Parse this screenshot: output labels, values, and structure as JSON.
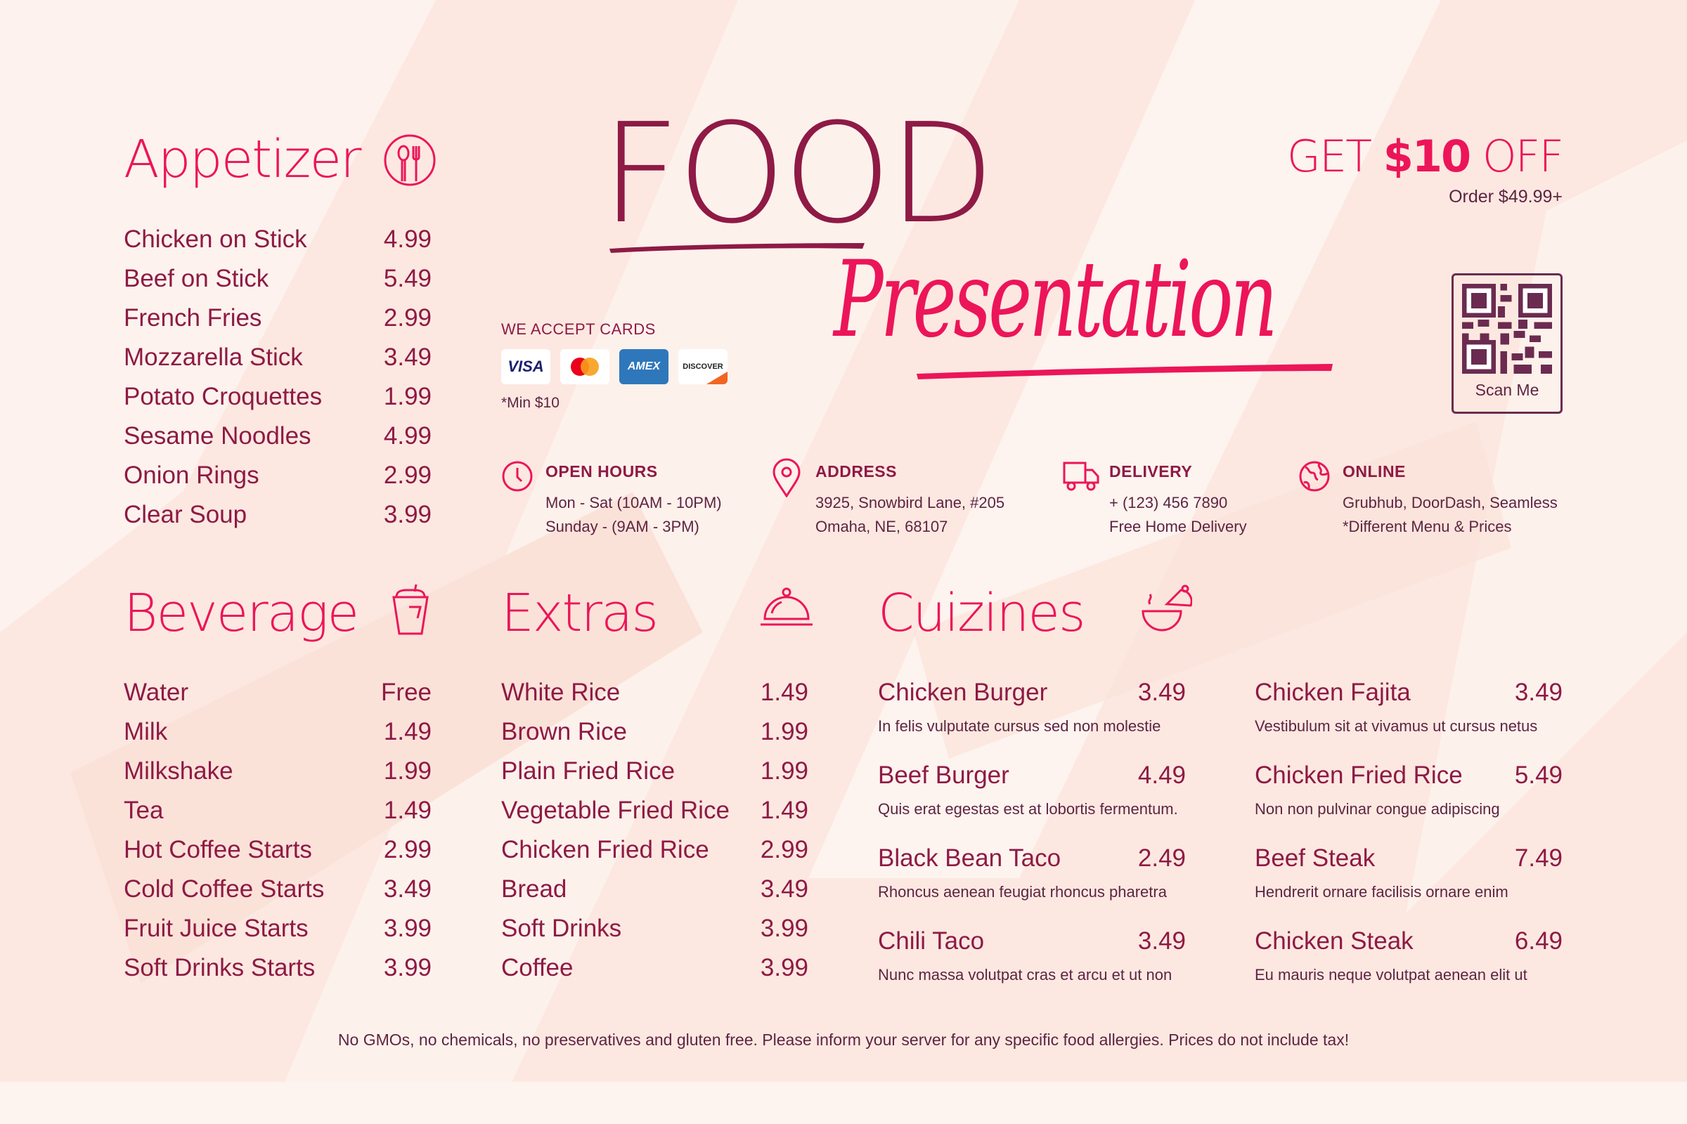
{
  "colors": {
    "accent": "#ec1559",
    "maroon": "#8e1a45",
    "text": "#5e2443",
    "background": "#fce8e1"
  },
  "title": {
    "food": "FOOD",
    "presentation": "Presentation"
  },
  "promo": {
    "get": "GET",
    "amount": "$10",
    "off": "OFF",
    "order": "Order $49.99+"
  },
  "qr": {
    "label": "Scan Me"
  },
  "cards": {
    "title": "WE ACCEPT CARDS",
    "visa": "VISA",
    "amex": "AMEX",
    "discover": "DISCOVER",
    "min": "*Min $10"
  },
  "info": [
    {
      "icon": "clock-icon",
      "title": "OPEN HOURS",
      "lines": [
        "Mon - Sat (10AM - 10PM)",
        "Sunday - (9AM - 3PM)"
      ]
    },
    {
      "icon": "location-pin-icon",
      "title": "ADDRESS",
      "lines": [
        "3925, Snowbird Lane, #205",
        "Omaha, NE, 68107"
      ]
    },
    {
      "icon": "truck-icon",
      "title": "DELIVERY",
      "lines": [
        "+ (123) 456 7890",
        "Free Home Delivery"
      ]
    },
    {
      "icon": "globe-icon",
      "title": "ONLINE",
      "lines": [
        "Grubhub, DoorDash, Seamless",
        "*Different Menu & Prices"
      ]
    }
  ],
  "appetizer": {
    "title": "Appetizer",
    "icon": "fork-spoon-icon",
    "items": [
      {
        "name": "Chicken on Stick",
        "price": "4.99"
      },
      {
        "name": "Beef on Stick",
        "price": "5.49"
      },
      {
        "name": "French Fries",
        "price": "2.99"
      },
      {
        "name": "Mozzarella Stick",
        "price": "3.49"
      },
      {
        "name": "Potato Croquettes",
        "price": "1.99"
      },
      {
        "name": "Sesame Noodles",
        "price": "4.99"
      },
      {
        "name": "Onion Rings",
        "price": "2.99"
      },
      {
        "name": "Clear Soup",
        "price": "3.99"
      }
    ]
  },
  "beverage": {
    "title": "Beverage",
    "icon": "cup-icon",
    "items": [
      {
        "name": "Water",
        "price": "Free"
      },
      {
        "name": "Milk",
        "price": "1.49"
      },
      {
        "name": "Milkshake",
        "price": "1.99"
      },
      {
        "name": "Tea",
        "price": "1.49"
      },
      {
        "name": "Hot Coffee Starts",
        "price": "2.99"
      },
      {
        "name": "Cold Coffee Starts",
        "price": "3.49"
      },
      {
        "name": "Fruit Juice Starts",
        "price": "3.99"
      },
      {
        "name": "Soft Drinks Starts",
        "price": "3.99"
      }
    ]
  },
  "extras": {
    "title": "Extras",
    "icon": "cloche-icon",
    "items": [
      {
        "name": "White Rice",
        "price": "1.49"
      },
      {
        "name": "Brown Rice",
        "price": "1.99"
      },
      {
        "name": "Plain Fried Rice",
        "price": "1.99"
      },
      {
        "name": "Vegetable Fried Rice",
        "price": "1.49"
      },
      {
        "name": "Chicken Fried Rice",
        "price": "2.99"
      },
      {
        "name": "Bread",
        "price": "3.49"
      },
      {
        "name": "Soft Drinks",
        "price": "3.99"
      },
      {
        "name": "Coffee",
        "price": "3.99"
      }
    ]
  },
  "cuizines": {
    "title": "Cuizines",
    "icon": "pot-icon",
    "items": [
      {
        "name": "Chicken Burger",
        "price": "3.49",
        "desc": "In felis vulputate cursus sed non molestie"
      },
      {
        "name": "Beef Burger",
        "price": "4.49",
        "desc": "Quis erat egestas est at lobortis fermentum."
      },
      {
        "name": "Black Bean Taco",
        "price": "2.49",
        "desc": "Rhoncus aenean feugiat rhoncus pharetra"
      },
      {
        "name": "Chili Taco",
        "price": "3.49",
        "desc": "Nunc massa volutpat cras et arcu et ut non"
      },
      {
        "name": "Chicken Fajita",
        "price": "3.49",
        "desc": "Vestibulum sit at vivamus ut cursus netus"
      },
      {
        "name": "Chicken Fried Rice",
        "price": "5.49",
        "desc": "Non non pulvinar congue adipiscing"
      },
      {
        "name": "Beef Steak",
        "price": "7.49",
        "desc": "Hendrerit ornare facilisis ornare enim"
      },
      {
        "name": "Chicken Steak",
        "price": "6.49",
        "desc": "Eu mauris neque volutpat aenean elit ut"
      }
    ]
  },
  "footer": "No GMOs, no chemicals, no preservatives and gluten free. Please inform your server for any specific food allergies. Prices do not include tax!"
}
